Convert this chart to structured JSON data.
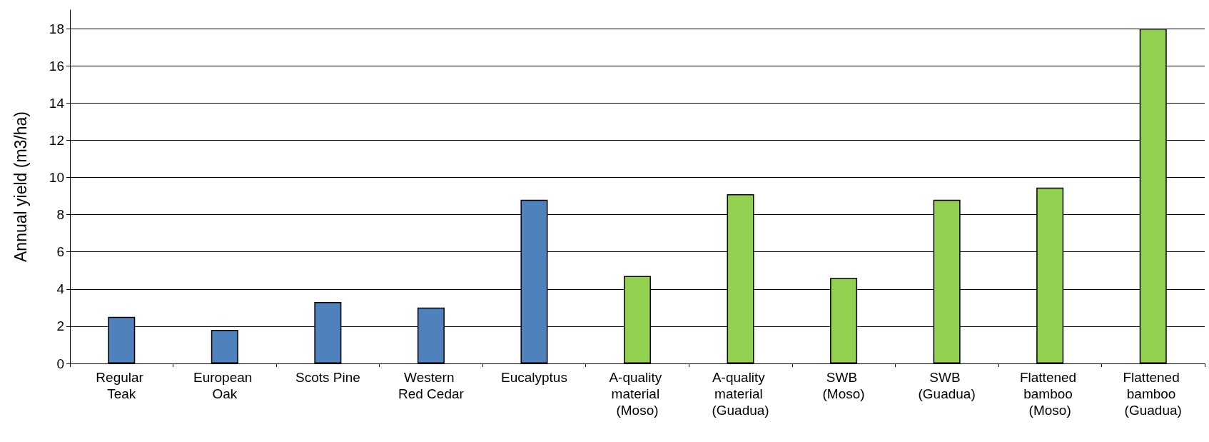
{
  "chart_data": {
    "type": "bar",
    "ylabel": "Annual yield (m3/ha)",
    "categories": [
      "Regular Teak",
      "European Oak",
      "Scots Pine",
      "Western Red Cedar",
      "Eucalyptus",
      "A-quality material (Moso)",
      "A-quality material (Guadua)",
      "SWB (Moso)",
      "SWB (Guadua)",
      "Flattened bamboo (Moso)",
      "Flattened bamboo (Guadua)"
    ],
    "values": [
      2.5,
      1.8,
      3.3,
      3.0,
      8.8,
      4.7,
      9.1,
      4.6,
      8.8,
      9.45,
      18
    ],
    "colors": [
      "#4f81bd",
      "#4f81bd",
      "#4f81bd",
      "#4f81bd",
      "#4f81bd",
      "#92d050",
      "#92d050",
      "#92d050",
      "#92d050",
      "#92d050",
      "#92d050"
    ],
    "ylim": [
      0,
      19
    ],
    "yticks": [
      0,
      2,
      4,
      6,
      8,
      10,
      12,
      14,
      16,
      18
    ],
    "grid": "y"
  }
}
